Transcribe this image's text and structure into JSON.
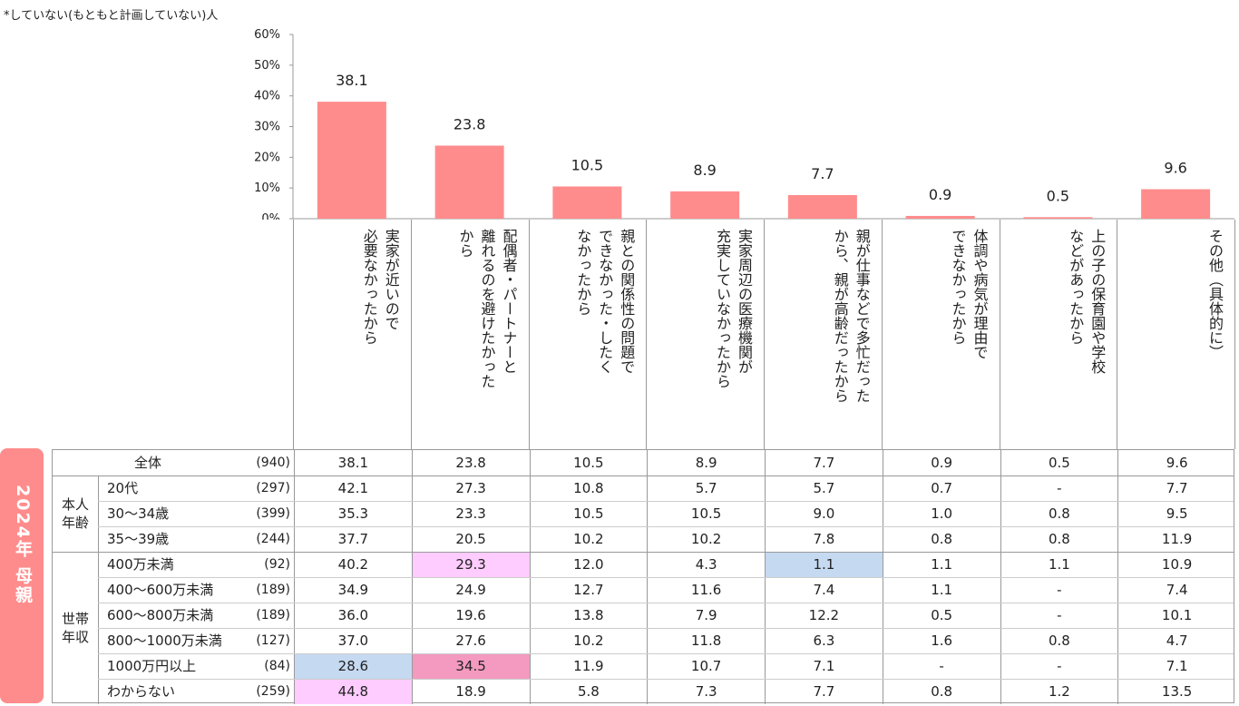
{
  "note": "*していない(もともと計画していない)人",
  "side_label": "2024年 母親",
  "chart_data": {
    "type": "bar",
    "categories": [
      "実家が近いので\n必要なかったから",
      "配偶者・パートナーと\n離れるのを避けたかった\nから",
      "親との関係性の問題で\nできなかった・したく\nなかったから",
      "実家周辺の医療機関が\n充実していなかったから",
      "親が仕事などで多忙だった\nから、親が高齢だったから",
      "体調や病気が理由で\nできなかったから",
      "上の子の保育園や学校\nなどがあったから",
      "その他（具体的に）"
    ],
    "values": [
      38.1,
      23.8,
      10.5,
      8.9,
      7.7,
      0.9,
      0.5,
      9.6
    ],
    "value_labels": [
      "38.1",
      "23.8",
      "10.5",
      "8.9",
      "7.7",
      "0.9",
      "0.5",
      "9.6"
    ],
    "ylim": [
      0,
      60
    ],
    "yticks": [
      "0%",
      "10%",
      "20%",
      "30%",
      "40%",
      "50%",
      "60%"
    ],
    "bar_color": "#FF8C8C"
  },
  "table": {
    "groups": [
      {
        "label": "",
        "rows": [
          0
        ]
      },
      {
        "label": "本人\n年齢",
        "rows": [
          1,
          2,
          3
        ]
      },
      {
        "label": "世帯\n年収",
        "rows": [
          4,
          5,
          6,
          7,
          8,
          9
        ]
      }
    ],
    "rows": [
      {
        "label": "全体",
        "n": "(940)",
        "values": [
          "38.1",
          "23.8",
          "10.5",
          "8.9",
          "7.7",
          "0.9",
          "0.5",
          "9.6"
        ],
        "hl": [
          "",
          "",
          "",
          "",
          "",
          "",
          "",
          ""
        ]
      },
      {
        "label": "20代",
        "n": "(297)",
        "values": [
          "42.1",
          "27.3",
          "10.8",
          "5.7",
          "5.7",
          "0.7",
          "-",
          "7.7"
        ],
        "hl": [
          "",
          "",
          "",
          "",
          "",
          "",
          "",
          ""
        ]
      },
      {
        "label": "30～34歳",
        "n": "(399)",
        "values": [
          "35.3",
          "23.3",
          "10.5",
          "10.5",
          "9.0",
          "1.0",
          "0.8",
          "9.5"
        ],
        "hl": [
          "",
          "",
          "",
          "",
          "",
          "",
          "",
          ""
        ]
      },
      {
        "label": "35～39歳",
        "n": "(244)",
        "values": [
          "37.7",
          "20.5",
          "10.2",
          "10.2",
          "7.8",
          "0.8",
          "0.8",
          "11.9"
        ],
        "hl": [
          "",
          "",
          "",
          "",
          "",
          "",
          "",
          ""
        ]
      },
      {
        "label": "400万未満",
        "n": "(92)",
        "values": [
          "40.2",
          "29.3",
          "12.0",
          "4.3",
          "1.1",
          "1.1",
          "1.1",
          "10.9"
        ],
        "hl": [
          "",
          "pink",
          "",
          "",
          "blue",
          "",
          "",
          ""
        ]
      },
      {
        "label": "400～600万未満",
        "n": "(189)",
        "values": [
          "34.9",
          "24.9",
          "12.7",
          "11.6",
          "7.4",
          "1.1",
          "-",
          "7.4"
        ],
        "hl": [
          "",
          "",
          "",
          "",
          "",
          "",
          "",
          ""
        ]
      },
      {
        "label": "600～800万未満",
        "n": "(189)",
        "values": [
          "36.0",
          "19.6",
          "13.8",
          "7.9",
          "12.2",
          "0.5",
          "-",
          "10.1"
        ],
        "hl": [
          "",
          "",
          "",
          "",
          "",
          "",
          "",
          ""
        ]
      },
      {
        "label": "800～1000万未満",
        "n": "(127)",
        "values": [
          "37.0",
          "27.6",
          "10.2",
          "11.8",
          "6.3",
          "1.6",
          "0.8",
          "4.7"
        ],
        "hl": [
          "",
          "",
          "",
          "",
          "",
          "",
          "",
          ""
        ]
      },
      {
        "label": "1000万円以上",
        "n": "(84)",
        "values": [
          "28.6",
          "34.5",
          "11.9",
          "10.7",
          "7.1",
          "-",
          "-",
          "7.1"
        ],
        "hl": [
          "blue",
          "dpink",
          "",
          "",
          "",
          "",
          "",
          ""
        ]
      },
      {
        "label": "わからない",
        "n": "(259)",
        "values": [
          "44.8",
          "18.9",
          "5.8",
          "7.3",
          "7.7",
          "0.8",
          "1.2",
          "13.5"
        ],
        "hl": [
          "pink",
          "",
          "",
          "",
          "",
          "",
          "",
          ""
        ]
      }
    ]
  }
}
